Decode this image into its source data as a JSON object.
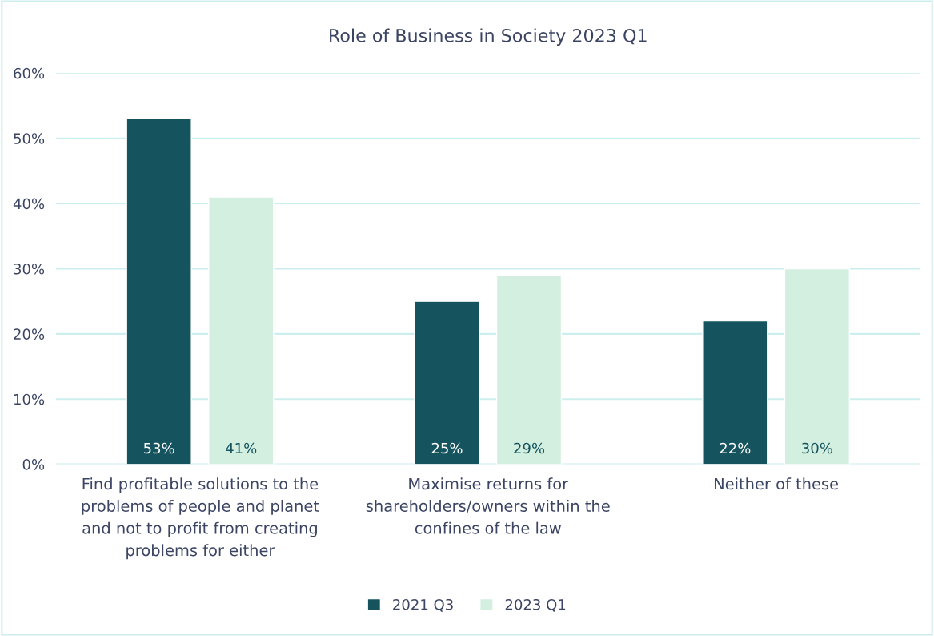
{
  "chart_data": {
    "type": "bar",
    "title": "Role of Business in Society 2023 Q1",
    "categories": [
      "Find profitable solutions to the\nproblems of people and planet\nand not to profit from creating\nproblems for either",
      "Maximise returns for\nshareholders/owners within the\nconfines of the law",
      "Neither of these"
    ],
    "series": [
      {
        "name": "2021 Q3",
        "color": "#15545e",
        "values": [
          53,
          25,
          22
        ],
        "value_labels": [
          "53%",
          "25%",
          "22%"
        ]
      },
      {
        "name": "2023 Q1",
        "color": "#d3efe0",
        "values": [
          41,
          29,
          30
        ],
        "value_labels": [
          "41%",
          "29%",
          "30%"
        ]
      }
    ],
    "ylim": [
      0,
      60
    ],
    "yticks": [
      {
        "value": 0,
        "label": "0%"
      },
      {
        "value": 10,
        "label": "10%"
      },
      {
        "value": 20,
        "label": "20%"
      },
      {
        "value": 30,
        "label": "30%"
      },
      {
        "value": 40,
        "label": "40%"
      },
      {
        "value": 50,
        "label": "50%"
      },
      {
        "value": 60,
        "label": "60%"
      }
    ],
    "grid": "y",
    "legend": "bottom"
  }
}
